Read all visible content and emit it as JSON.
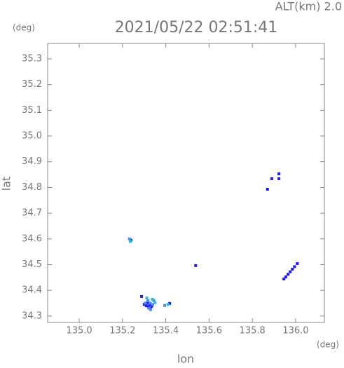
{
  "chart_data": {
    "type": "scatter",
    "title": "2021/05/22 02:51:41",
    "subtitle": "ALT(km) 2.0",
    "y_unit": "(deg)",
    "x_unit": "(deg)",
    "y_label": "lat",
    "x_label": "lon",
    "xlim": [
      134.854,
      136.133
    ],
    "ylim": [
      34.275,
      35.36
    ],
    "xticks": [
      {
        "value": 135.0,
        "label": "135.0"
      },
      135.2,
      135.4,
      135.6,
      135.8,
      {
        "value": 136.0,
        "label": "136.0"
      }
    ],
    "yticks": [
      34.3,
      34.4,
      34.5,
      34.6,
      34.7,
      34.8,
      34.9,
      {
        "value": 35.0,
        "label": "35.0"
      },
      35.1,
      35.2,
      35.3
    ],
    "grid": false,
    "series": [
      {
        "color": "#1a1aff",
        "x": [
          135.239,
          135.538,
          135.288,
          135.3,
          135.31,
          135.32,
          135.33,
          135.325,
          135.315,
          135.335,
          135.418,
          135.87,
          135.923,
          135.923,
          135.89,
          135.946,
          135.955,
          135.965,
          135.975,
          135.985,
          135.995,
          136.008
        ],
        "values": [
          34.595,
          34.496,
          34.376,
          34.345,
          34.34,
          34.335,
          34.33,
          34.345,
          34.352,
          34.338,
          34.349,
          34.793,
          34.853,
          34.834,
          34.834,
          34.444,
          34.452,
          34.462,
          34.472,
          34.482,
          34.492,
          34.504
        ]
      },
      {
        "color": "#4a8cff",
        "x": [
          135.232,
          135.305,
          135.318,
          135.328,
          135.34,
          135.33,
          135.322,
          135.395,
          135.345
        ],
        "values": [
          34.6,
          34.35,
          34.36,
          34.35,
          34.345,
          34.325,
          34.33,
          34.341,
          34.36
        ]
      },
      {
        "color": "#20c0d8",
        "x": [
          135.236,
          135.312,
          135.35,
          135.338,
          135.41
        ],
        "values": [
          34.59,
          34.37,
          34.352,
          34.365,
          34.345
        ]
      }
    ]
  }
}
